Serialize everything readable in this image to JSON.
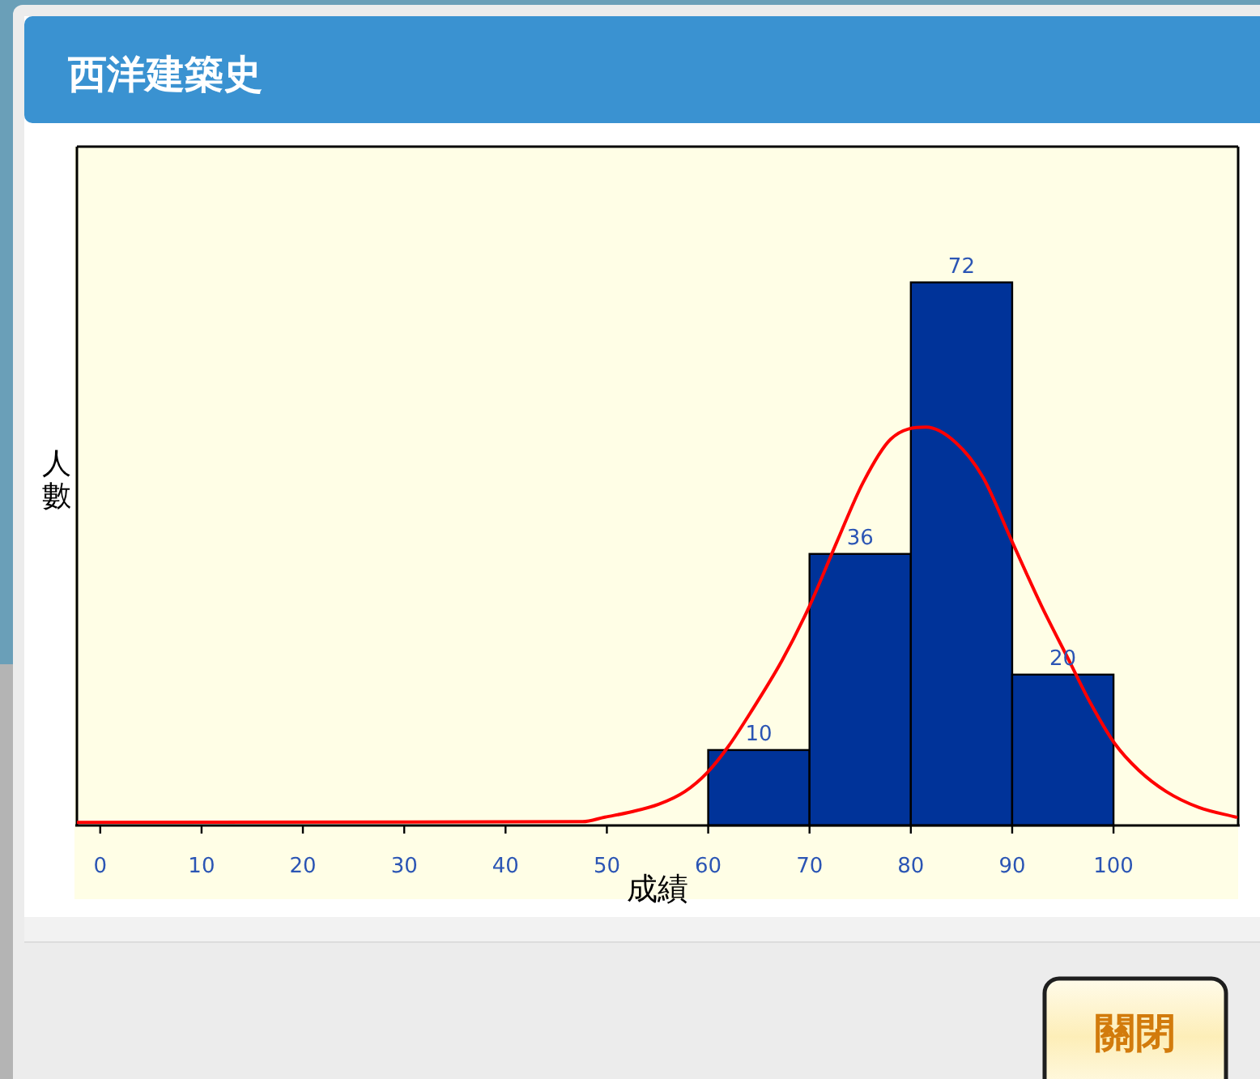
{
  "chart_data": {
    "type": "histogram",
    "title": "西洋建築史",
    "xlabel": "成績",
    "ylabel": "人數",
    "annotations": [
      "關閉"
    ],
    "bins": [
      60,
      70,
      80,
      90,
      100
    ],
    "series": [
      {
        "color": "#003399",
        "values": [
          10,
          36,
          72,
          20
        ],
        "value_labels": [
          "10",
          "36",
          "72",
          "20"
        ]
      },
      {
        "type": "line",
        "color": "#ff0000",
        "x": [
          -2.3,
          47.6,
          49.8,
          52.4,
          55.1,
          57.7,
          59.9,
          62,
          64.1,
          67.3,
          70,
          72.7,
          75.3,
          78,
          81.5,
          84.4,
          87.1,
          90,
          92.9,
          95.6,
          97.7,
          100.1,
          102.5,
          105.2,
          108.4,
          112.1
        ],
        "values": [
          0.4,
          0.5,
          1.1,
          1.8,
          2.8,
          4.5,
          7.0,
          10.5,
          14.8,
          21.9,
          29.1,
          37.6,
          45.5,
          51.2,
          52.8,
          50.8,
          46.2,
          37.6,
          29.1,
          21.9,
          16.3,
          10.9,
          7.3,
          4.5,
          2.4,
          1.1
        ]
      }
    ],
    "xlim": [
      -2.3,
      112.3
    ],
    "xticks": [
      0,
      10,
      20,
      30,
      40,
      50,
      60,
      70,
      80,
      90,
      100
    ],
    "ylim": [
      0,
      90
    ],
    "tick_labels": "x"
  }
}
